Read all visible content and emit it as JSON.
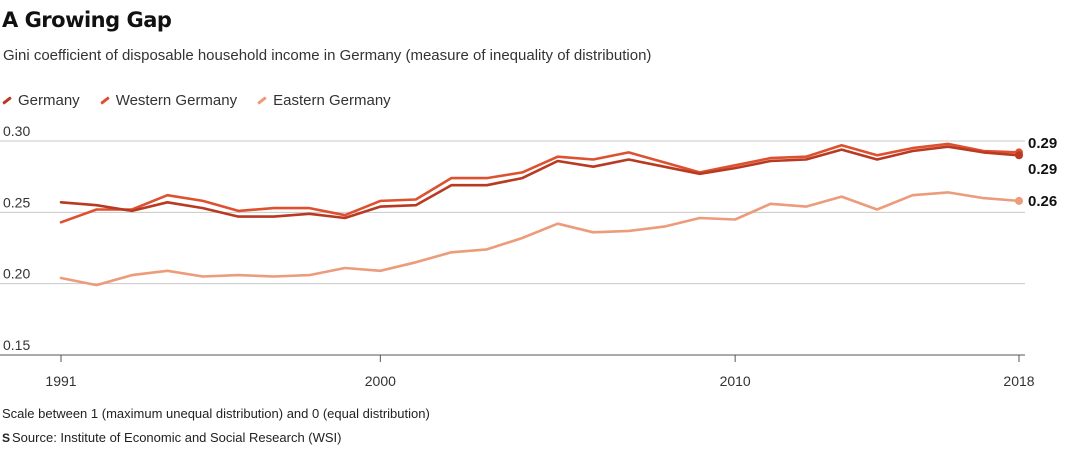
{
  "header": {
    "title": "A Growing Gap",
    "subtitle": "Gini coefficient of disposable household income in Germany (measure of inequality of distribution)"
  },
  "footer": {
    "note": "Scale between 1 (maximum unequal distribution) and 0 (equal distribution)",
    "source_icon": "S",
    "source": "Source: Institute of Economic and Social Research (WSI)"
  },
  "chart_data": {
    "type": "line",
    "title": "A Growing Gap",
    "subtitle": "Gini coefficient of disposable household income in Germany (measure of inequality of distribution)",
    "xlabel": "",
    "ylabel": "",
    "xlim": [
      1991,
      2018
    ],
    "ylim": [
      0.15,
      0.3
    ],
    "x_ticks": [
      1991,
      2000,
      2010,
      2018
    ],
    "x_tick_labels": [
      "1991",
      "2000",
      "2010",
      "2018"
    ],
    "y_ticks": [
      0.3,
      0.25,
      0.2,
      0.15
    ],
    "y_tick_labels": [
      "0.30",
      "0.25",
      "0.20",
      "0.15"
    ],
    "grid": true,
    "legend_position": "top-left",
    "x": [
      1991,
      1992,
      1993,
      1994,
      1995,
      1996,
      1997,
      1998,
      1999,
      2000,
      2001,
      2002,
      2003,
      2004,
      2005,
      2006,
      2007,
      2008,
      2009,
      2010,
      2011,
      2012,
      2013,
      2014,
      2015,
      2016,
      2017,
      2018
    ],
    "series": [
      {
        "name": "Germany",
        "color": "#b83a22",
        "end_label": "0.29",
        "values": [
          0.257,
          0.255,
          0.251,
          0.257,
          0.253,
          0.247,
          0.247,
          0.249,
          0.246,
          0.254,
          0.255,
          0.269,
          0.269,
          0.274,
          0.286,
          0.282,
          0.287,
          0.282,
          0.277,
          0.281,
          0.286,
          0.287,
          0.294,
          0.287,
          0.293,
          0.296,
          0.292,
          0.29
        ]
      },
      {
        "name": "Western Germany",
        "color": "#de5130",
        "end_label": "0.29",
        "values": [
          0.243,
          0.252,
          0.252,
          0.262,
          0.258,
          0.251,
          0.253,
          0.253,
          0.248,
          0.258,
          0.259,
          0.274,
          0.274,
          0.278,
          0.289,
          0.287,
          0.292,
          0.285,
          0.278,
          0.283,
          0.288,
          0.289,
          0.297,
          0.29,
          0.295,
          0.298,
          0.293,
          0.292
        ]
      },
      {
        "name": "Eastern Germany",
        "color": "#ec9b7b",
        "end_label": "0.26",
        "values": [
          0.204,
          0.199,
          0.206,
          0.209,
          0.205,
          0.206,
          0.205,
          0.206,
          0.211,
          0.209,
          0.215,
          0.222,
          0.224,
          0.232,
          0.242,
          0.236,
          0.237,
          0.24,
          0.246,
          0.245,
          0.256,
          0.254,
          0.261,
          0.252,
          0.262,
          0.264,
          0.26,
          0.258
        ]
      }
    ]
  }
}
